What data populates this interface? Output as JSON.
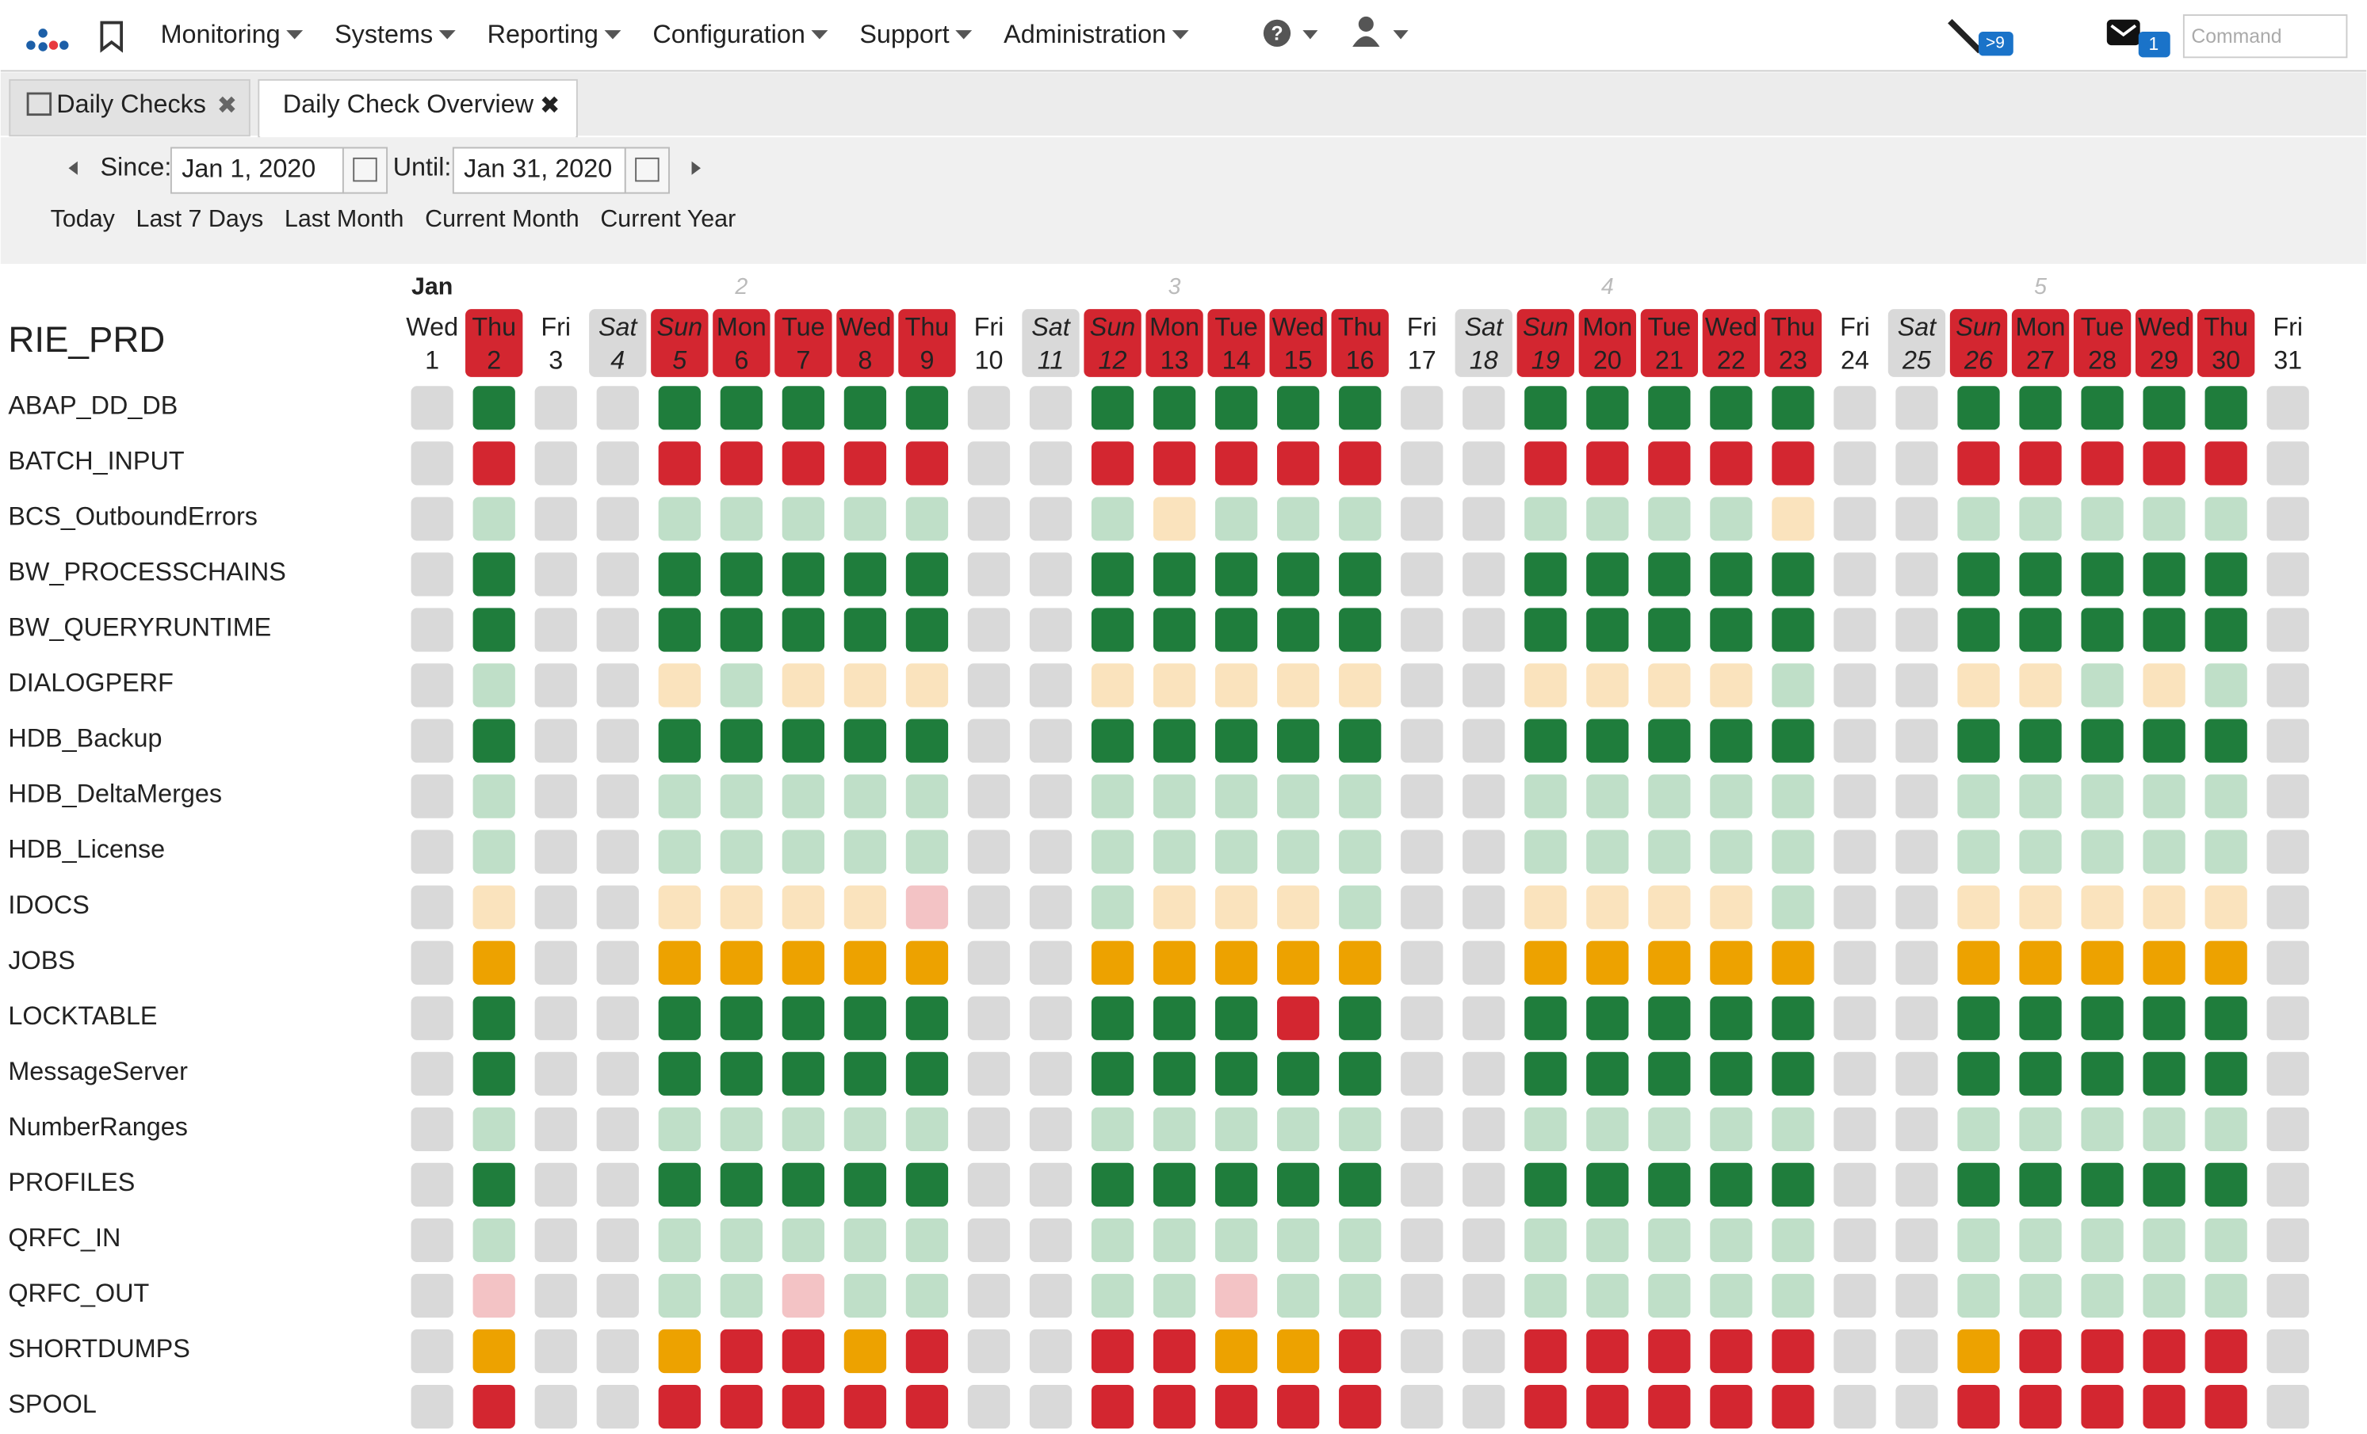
{
  "nav": {
    "menus": [
      "Monitoring",
      "Systems",
      "Reporting",
      "Configuration",
      "Support",
      "Administration"
    ],
    "alerts_badge": ">9",
    "messages_badge": "1",
    "command_placeholder": "Command"
  },
  "tabs": [
    "Daily Checks",
    "Daily Check Overview"
  ],
  "filter": {
    "since_label": "Since:",
    "since": "Jan 1, 2020",
    "until_label": "Until:",
    "until": "Jan 31, 2020",
    "quick_links": [
      "Today",
      "Last 7 Days",
      "Last Month",
      "Current Month",
      "Current Year"
    ]
  },
  "overview": {
    "system": "RIE_PRD",
    "month": "Jan",
    "weeks": [
      {
        "label": "2",
        "column": 6
      },
      {
        "label": "3",
        "column": 13
      },
      {
        "label": "4",
        "column": 20
      },
      {
        "label": "5",
        "column": 27
      }
    ],
    "status_colors": {
      "X": "#d9d9d9",
      "G": "#1f7d3c",
      "R": "#d32630",
      "L": "#bfdfc8",
      "Y": "#fae3bd",
      "O": "#eda200",
      "P": "#f3c3c5"
    },
    "header_colors": {
      "red": "#d32630",
      "weekend": "#d9d9d9"
    },
    "columns": [
      {
        "weekday": "Wed",
        "day": 1,
        "style": "plain"
      },
      {
        "weekday": "Thu",
        "day": 2,
        "style": "red"
      },
      {
        "weekday": "Fri",
        "day": 3,
        "style": "plain"
      },
      {
        "weekday": "Sat",
        "day": 4,
        "style": "weekend"
      },
      {
        "weekday": "Sun",
        "day": 5,
        "style": "red-italic"
      },
      {
        "weekday": "Mon",
        "day": 6,
        "style": "red"
      },
      {
        "weekday": "Tue",
        "day": 7,
        "style": "red"
      },
      {
        "weekday": "Wed",
        "day": 8,
        "style": "red"
      },
      {
        "weekday": "Thu",
        "day": 9,
        "style": "red"
      },
      {
        "weekday": "Fri",
        "day": 10,
        "style": "plain"
      },
      {
        "weekday": "Sat",
        "day": 11,
        "style": "weekend"
      },
      {
        "weekday": "Sun",
        "day": 12,
        "style": "red-italic"
      },
      {
        "weekday": "Mon",
        "day": 13,
        "style": "red"
      },
      {
        "weekday": "Tue",
        "day": 14,
        "style": "red"
      },
      {
        "weekday": "Wed",
        "day": 15,
        "style": "red"
      },
      {
        "weekday": "Thu",
        "day": 16,
        "style": "red"
      },
      {
        "weekday": "Fri",
        "day": 17,
        "style": "plain"
      },
      {
        "weekday": "Sat",
        "day": 18,
        "style": "weekend"
      },
      {
        "weekday": "Sun",
        "day": 19,
        "style": "red-italic"
      },
      {
        "weekday": "Mon",
        "day": 20,
        "style": "red"
      },
      {
        "weekday": "Tue",
        "day": 21,
        "style": "red"
      },
      {
        "weekday": "Wed",
        "day": 22,
        "style": "red"
      },
      {
        "weekday": "Thu",
        "day": 23,
        "style": "red"
      },
      {
        "weekday": "Fri",
        "day": 24,
        "style": "plain"
      },
      {
        "weekday": "Sat",
        "day": 25,
        "style": "weekend"
      },
      {
        "weekday": "Sun",
        "day": 26,
        "style": "red-italic"
      },
      {
        "weekday": "Mon",
        "day": 27,
        "style": "red"
      },
      {
        "weekday": "Tue",
        "day": 28,
        "style": "red"
      },
      {
        "weekday": "Wed",
        "day": 29,
        "style": "red"
      },
      {
        "weekday": "Thu",
        "day": 30,
        "style": "red"
      },
      {
        "weekday": "Fri",
        "day": 31,
        "style": "plain"
      }
    ],
    "rows": [
      {
        "name": "ABAP_DD_DB",
        "status": "XGXXGGGGGXXGGGGGXXGGGGGXXGGGGGX"
      },
      {
        "name": "BATCH_INPUT",
        "status": "XRXXRRRRRXXRRRRRXXRRRRRXXRRRRRX"
      },
      {
        "name": "BCS_OutboundErrors",
        "status": "XLXXLLLLLXXLYLLLXXLLLLYXXLLLLLX"
      },
      {
        "name": "BW_PROCESSCHAINS",
        "status": "XGXXGGGGGXXGGGGGXXGGGGGXXGGGGGX"
      },
      {
        "name": "BW_QUERYRUNTIME",
        "status": "XGXXGGGGGXXGGGGGXXGGGGGXXGGGGGX"
      },
      {
        "name": "DIALOGPERF",
        "status": "XLXXYLYYYXXYYYYYXXYYYYLXXYYLYLX"
      },
      {
        "name": "HDB_Backup",
        "status": "XGXXGGGGGXXGGGGGXXGGGGGXXGGGGGX"
      },
      {
        "name": "HDB_DeltaMerges",
        "status": "XLXXLLLLLXXLLLLLXXLLLLLXXLLLLLX"
      },
      {
        "name": "HDB_License",
        "status": "XLXXLLLLLXXLLLLLXXLLLLLXXLLLLLX"
      },
      {
        "name": "IDOCS",
        "status": "XYXXYYYYPXXLYYYLXXYYYYLXXYYYYYX"
      },
      {
        "name": "JOBS",
        "status": "XOXXOOOOOXXOOOOOXXOOOOOXXOOOOOX"
      },
      {
        "name": "LOCKTABLE",
        "status": "XGXXGGGGGXXGGGRGXXGGGGGXXGGGGGX"
      },
      {
        "name": "MessageServer",
        "status": "XGXXGGGGGXXGGGGGXXGGGGGXXGGGGGX"
      },
      {
        "name": "NumberRanges",
        "status": "XLXXLLLLLXXLLLLLXXLLLLLXXLLLLLX"
      },
      {
        "name": "PROFILES",
        "status": "XGXXGGGGGXXGGGGGXXGGGGGXXGGGGGX"
      },
      {
        "name": "QRFC_IN",
        "status": "XLXXLLLLLXXLLLLLXXLLLLLXXLLLLLX"
      },
      {
        "name": "QRFC_OUT",
        "status": "XPXXLLPLLXXLLPLLXXLLLLLXXLLLLLX"
      },
      {
        "name": "SHORTDUMPS",
        "status": "XOXXORRORXXRROORXXRRRRRXXORRRRX"
      },
      {
        "name": "SPOOL",
        "status": "XRXXRRRRRXXRRRRRXXRRRRRXXRRRRRX"
      }
    ]
  }
}
